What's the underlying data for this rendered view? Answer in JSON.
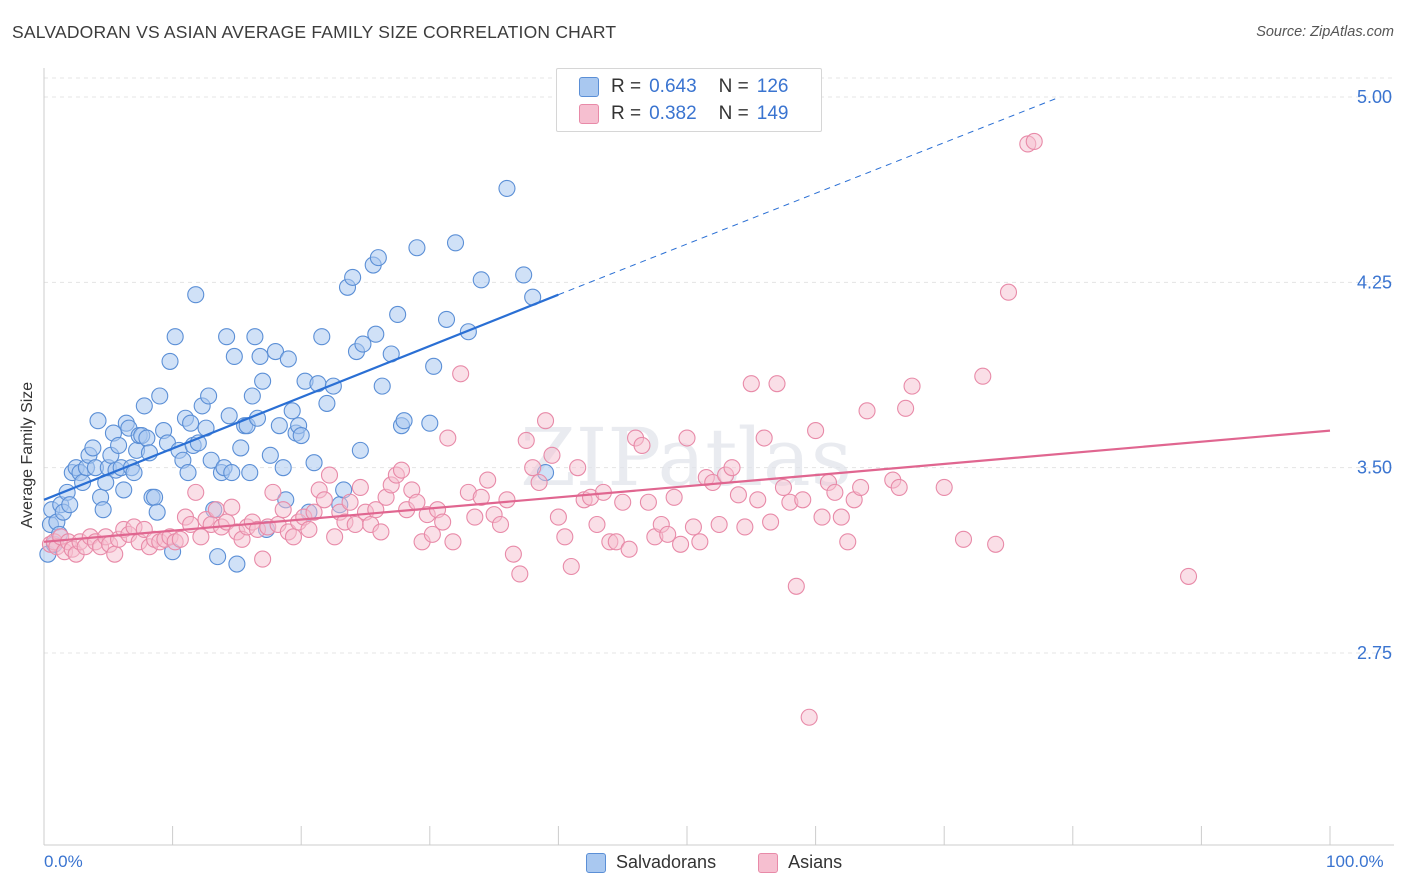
{
  "header": {
    "title": "SALVADORAN VS ASIAN AVERAGE FAMILY SIZE CORRELATION CHART",
    "source": "Source: ZipAtlas.com"
  },
  "legend": {
    "rows": [
      {
        "r_label": "R =",
        "r_value": "0.643",
        "n_label": "N =",
        "n_value": "126"
      },
      {
        "r_label": "R =",
        "r_value": "0.382",
        "n_label": "N =",
        "n_value": "149"
      }
    ]
  },
  "bottom_legend": [
    "Salvadorans",
    "Asians"
  ],
  "watermark": "ZIPatlas",
  "colors": {
    "blue_fill": "#a9c8f0",
    "blue_stroke": "#5b8fd6",
    "blue_line": "#2a6fd4",
    "pink_fill": "#f6bfd0",
    "pink_stroke": "#e88aa8",
    "pink_line": "#e06690",
    "axis_label": "#3a74d0",
    "grid": "#e4e4e4"
  },
  "chart_data": {
    "type": "scatter",
    "title": "SALVADORAN VS ASIAN AVERAGE FAMILY SIZE CORRELATION CHART",
    "xlabel": "",
    "ylabel": "Average Family Size",
    "xlim": [
      0,
      100
    ],
    "ylim": [
      2.0,
      5.1
    ],
    "x_tick_labels": [
      "0.0%",
      "100.0%"
    ],
    "y_ticks": [
      2.75,
      3.5,
      4.25,
      5.0
    ],
    "y_tick_labels": [
      "2.75",
      "3.50",
      "4.25",
      "5.00"
    ],
    "grid": true,
    "legend_position": "top-center",
    "series": [
      {
        "name": "Salvadorans",
        "color": "#5b8fd6",
        "r": 0.643,
        "n": 126,
        "trend": {
          "x": [
            0,
            40
          ],
          "y": [
            3.37,
            4.2
          ]
        },
        "trend_extended": {
          "x": [
            40,
            79
          ],
          "y": [
            4.2,
            5.0
          ]
        },
        "points": [
          [
            0.3,
            3.15
          ],
          [
            0.5,
            3.27
          ],
          [
            0.6,
            3.33
          ],
          [
            0.8,
            3.19
          ],
          [
            1.0,
            3.28
          ],
          [
            1.2,
            3.23
          ],
          [
            1.3,
            3.35
          ],
          [
            1.5,
            3.32
          ],
          [
            1.8,
            3.4
          ],
          [
            2.0,
            3.35
          ],
          [
            2.2,
            3.48
          ],
          [
            2.5,
            3.5
          ],
          [
            2.8,
            3.48
          ],
          [
            3.0,
            3.44
          ],
          [
            3.3,
            3.5
          ],
          [
            3.5,
            3.55
          ],
          [
            3.8,
            3.58
          ],
          [
            4.0,
            3.5
          ],
          [
            4.2,
            3.69
          ],
          [
            4.4,
            3.38
          ],
          [
            4.6,
            3.33
          ],
          [
            4.8,
            3.44
          ],
          [
            5.0,
            3.5
          ],
          [
            5.2,
            3.55
          ],
          [
            5.4,
            3.64
          ],
          [
            5.6,
            3.49
          ],
          [
            5.8,
            3.59
          ],
          [
            6.0,
            3.5
          ],
          [
            6.2,
            3.41
          ],
          [
            6.4,
            3.68
          ],
          [
            6.6,
            3.66
          ],
          [
            6.8,
            3.5
          ],
          [
            7.0,
            3.48
          ],
          [
            7.2,
            3.57
          ],
          [
            7.4,
            3.63
          ],
          [
            7.6,
            3.63
          ],
          [
            7.8,
            3.75
          ],
          [
            8.0,
            3.62
          ],
          [
            8.2,
            3.56
          ],
          [
            8.4,
            3.38
          ],
          [
            8.6,
            3.38
          ],
          [
            8.8,
            3.32
          ],
          [
            9.0,
            3.79
          ],
          [
            9.3,
            3.65
          ],
          [
            9.6,
            3.6
          ],
          [
            9.8,
            3.93
          ],
          [
            10.0,
            3.16
          ],
          [
            10.2,
            4.03
          ],
          [
            10.5,
            3.57
          ],
          [
            10.8,
            3.53
          ],
          [
            11.0,
            3.7
          ],
          [
            11.2,
            3.48
          ],
          [
            11.4,
            3.68
          ],
          [
            11.6,
            3.59
          ],
          [
            11.8,
            4.2
          ],
          [
            12.0,
            3.6
          ],
          [
            12.3,
            3.75
          ],
          [
            12.6,
            3.66
          ],
          [
            12.8,
            3.79
          ],
          [
            13.0,
            3.53
          ],
          [
            13.2,
            3.33
          ],
          [
            13.5,
            3.14
          ],
          [
            13.8,
            3.48
          ],
          [
            14.0,
            3.5
          ],
          [
            14.2,
            4.03
          ],
          [
            14.4,
            3.71
          ],
          [
            14.6,
            3.48
          ],
          [
            14.8,
            3.95
          ],
          [
            15.0,
            3.11
          ],
          [
            15.3,
            3.58
          ],
          [
            15.6,
            3.67
          ],
          [
            15.8,
            3.67
          ],
          [
            16.0,
            3.48
          ],
          [
            16.2,
            3.79
          ],
          [
            16.4,
            4.03
          ],
          [
            16.6,
            3.7
          ],
          [
            16.8,
            3.95
          ],
          [
            17.0,
            3.85
          ],
          [
            17.3,
            3.25
          ],
          [
            17.6,
            3.55
          ],
          [
            18.0,
            3.97
          ],
          [
            18.3,
            3.67
          ],
          [
            18.6,
            3.5
          ],
          [
            18.8,
            3.37
          ],
          [
            19.0,
            3.94
          ],
          [
            19.3,
            3.73
          ],
          [
            19.6,
            3.64
          ],
          [
            19.8,
            3.67
          ],
          [
            20.0,
            3.63
          ],
          [
            20.3,
            3.85
          ],
          [
            20.6,
            3.32
          ],
          [
            21.0,
            3.52
          ],
          [
            21.3,
            3.84
          ],
          [
            21.6,
            4.03
          ],
          [
            22.0,
            3.76
          ],
          [
            22.5,
            3.83
          ],
          [
            23.0,
            3.35
          ],
          [
            23.3,
            3.41
          ],
          [
            23.6,
            4.23
          ],
          [
            24.0,
            4.27
          ],
          [
            24.3,
            3.97
          ],
          [
            24.6,
            3.57
          ],
          [
            24.8,
            4.0
          ],
          [
            25.6,
            4.32
          ],
          [
            25.8,
            4.04
          ],
          [
            26.0,
            4.35
          ],
          [
            26.3,
            3.83
          ],
          [
            27.0,
            3.96
          ],
          [
            27.5,
            4.12
          ],
          [
            27.8,
            3.67
          ],
          [
            28.0,
            3.69
          ],
          [
            29.0,
            4.39
          ],
          [
            30.0,
            3.68
          ],
          [
            30.3,
            3.91
          ],
          [
            31.3,
            4.1
          ],
          [
            32.0,
            4.41
          ],
          [
            33.0,
            4.05
          ],
          [
            34.0,
            4.26
          ],
          [
            36.0,
            4.63
          ],
          [
            37.3,
            4.28
          ],
          [
            38.0,
            4.19
          ],
          [
            39.0,
            3.48
          ]
        ]
      },
      {
        "name": "Asians",
        "color": "#e88aa8",
        "r": 0.382,
        "n": 149,
        "trend": {
          "x": [
            0,
            100
          ],
          "y": [
            3.2,
            3.65
          ]
        },
        "points": [
          [
            0.5,
            3.19
          ],
          [
            0.8,
            3.2
          ],
          [
            1.0,
            3.18
          ],
          [
            1.3,
            3.22
          ],
          [
            1.6,
            3.16
          ],
          [
            1.9,
            3.2
          ],
          [
            2.2,
            3.17
          ],
          [
            2.5,
            3.15
          ],
          [
            2.8,
            3.2
          ],
          [
            3.2,
            3.18
          ],
          [
            3.6,
            3.22
          ],
          [
            4.0,
            3.2
          ],
          [
            4.4,
            3.18
          ],
          [
            4.8,
            3.22
          ],
          [
            5.1,
            3.19
          ],
          [
            5.5,
            3.15
          ],
          [
            5.8,
            3.21
          ],
          [
            6.2,
            3.25
          ],
          [
            6.6,
            3.23
          ],
          [
            7.0,
            3.26
          ],
          [
            7.4,
            3.2
          ],
          [
            7.8,
            3.25
          ],
          [
            8.2,
            3.18
          ],
          [
            8.6,
            3.21
          ],
          [
            9.0,
            3.2
          ],
          [
            9.4,
            3.21
          ],
          [
            9.8,
            3.22
          ],
          [
            10.2,
            3.2
          ],
          [
            10.6,
            3.21
          ],
          [
            11.0,
            3.3
          ],
          [
            11.4,
            3.27
          ],
          [
            11.8,
            3.4
          ],
          [
            12.2,
            3.22
          ],
          [
            12.6,
            3.29
          ],
          [
            13.0,
            3.27
          ],
          [
            13.4,
            3.33
          ],
          [
            13.8,
            3.26
          ],
          [
            14.2,
            3.28
          ],
          [
            14.6,
            3.34
          ],
          [
            15.0,
            3.24
          ],
          [
            15.4,
            3.21
          ],
          [
            15.8,
            3.26
          ],
          [
            16.2,
            3.28
          ],
          [
            16.6,
            3.25
          ],
          [
            17.0,
            3.13
          ],
          [
            17.4,
            3.26
          ],
          [
            17.8,
            3.4
          ],
          [
            18.2,
            3.27
          ],
          [
            18.6,
            3.33
          ],
          [
            19.0,
            3.24
          ],
          [
            19.4,
            3.22
          ],
          [
            19.8,
            3.28
          ],
          [
            20.2,
            3.3
          ],
          [
            20.6,
            3.25
          ],
          [
            21.0,
            3.32
          ],
          [
            21.4,
            3.41
          ],
          [
            21.8,
            3.37
          ],
          [
            22.2,
            3.47
          ],
          [
            22.6,
            3.22
          ],
          [
            23.0,
            3.32
          ],
          [
            23.4,
            3.28
          ],
          [
            23.8,
            3.36
          ],
          [
            24.2,
            3.27
          ],
          [
            24.6,
            3.42
          ],
          [
            25.0,
            3.32
          ],
          [
            25.4,
            3.27
          ],
          [
            25.8,
            3.33
          ],
          [
            26.2,
            3.24
          ],
          [
            26.6,
            3.38
          ],
          [
            27.0,
            3.43
          ],
          [
            27.4,
            3.47
          ],
          [
            27.8,
            3.49
          ],
          [
            28.2,
            3.33
          ],
          [
            28.6,
            3.41
          ],
          [
            29.0,
            3.36
          ],
          [
            29.4,
            3.2
          ],
          [
            29.8,
            3.31
          ],
          [
            30.2,
            3.23
          ],
          [
            30.6,
            3.33
          ],
          [
            31.0,
            3.28
          ],
          [
            31.4,
            3.62
          ],
          [
            31.8,
            3.2
          ],
          [
            32.4,
            3.88
          ],
          [
            33.0,
            3.4
          ],
          [
            33.5,
            3.3
          ],
          [
            34.0,
            3.38
          ],
          [
            34.5,
            3.45
          ],
          [
            35.0,
            3.31
          ],
          [
            35.5,
            3.27
          ],
          [
            36.0,
            3.37
          ],
          [
            36.5,
            3.15
          ],
          [
            37.0,
            3.07
          ],
          [
            37.5,
            3.61
          ],
          [
            38.0,
            3.5
          ],
          [
            38.5,
            3.44
          ],
          [
            39.0,
            3.69
          ],
          [
            39.5,
            3.55
          ],
          [
            40.0,
            3.3
          ],
          [
            40.5,
            3.22
          ],
          [
            41.0,
            3.1
          ],
          [
            41.5,
            3.5
          ],
          [
            42.0,
            3.37
          ],
          [
            42.5,
            3.38
          ],
          [
            43.0,
            3.27
          ],
          [
            43.5,
            3.4
          ],
          [
            44.0,
            3.2
          ],
          [
            44.5,
            3.2
          ],
          [
            45.0,
            3.36
          ],
          [
            45.5,
            3.17
          ],
          [
            46.0,
            3.62
          ],
          [
            46.5,
            3.59
          ],
          [
            47.0,
            3.36
          ],
          [
            47.5,
            3.22
          ],
          [
            48.0,
            3.27
          ],
          [
            48.5,
            3.23
          ],
          [
            49.0,
            3.38
          ],
          [
            49.5,
            3.19
          ],
          [
            50.0,
            3.62
          ],
          [
            50.5,
            3.26
          ],
          [
            51.0,
            3.2
          ],
          [
            51.5,
            3.46
          ],
          [
            52.0,
            3.44
          ],
          [
            52.5,
            3.27
          ],
          [
            53.0,
            3.47
          ],
          [
            53.5,
            3.5
          ],
          [
            54.0,
            3.39
          ],
          [
            54.5,
            3.26
          ],
          [
            55.0,
            3.84
          ],
          [
            55.5,
            3.37
          ],
          [
            56.0,
            3.62
          ],
          [
            56.5,
            3.28
          ],
          [
            57.0,
            3.84
          ],
          [
            57.5,
            3.42
          ],
          [
            58.0,
            3.36
          ],
          [
            58.5,
            3.02
          ],
          [
            59.0,
            3.37
          ],
          [
            59.5,
            2.49
          ],
          [
            60.0,
            3.65
          ],
          [
            60.5,
            3.3
          ],
          [
            61.0,
            3.44
          ],
          [
            61.5,
            3.4
          ],
          [
            62.0,
            3.3
          ],
          [
            62.5,
            3.2
          ],
          [
            63.0,
            3.37
          ],
          [
            63.5,
            3.42
          ],
          [
            64.0,
            3.73
          ],
          [
            66.0,
            3.45
          ],
          [
            66.5,
            3.42
          ],
          [
            67.0,
            3.74
          ],
          [
            67.5,
            3.83
          ],
          [
            70.0,
            3.42
          ],
          [
            71.5,
            3.21
          ],
          [
            73.0,
            3.87
          ],
          [
            74.0,
            3.19
          ],
          [
            75.0,
            4.21
          ],
          [
            76.5,
            4.81
          ],
          [
            77.0,
            4.82
          ],
          [
            89.0,
            3.06
          ]
        ]
      }
    ]
  }
}
